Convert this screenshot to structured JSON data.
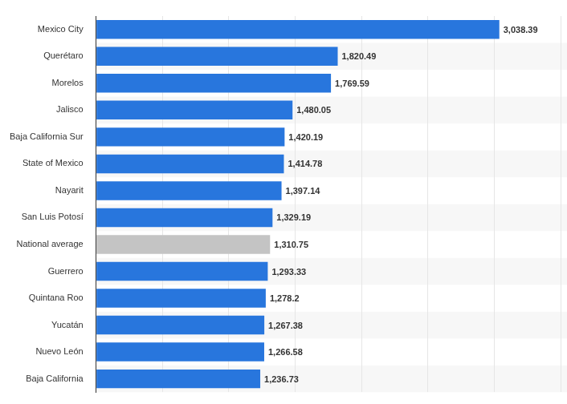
{
  "chart_data": {
    "type": "bar",
    "orientation": "horizontal",
    "categories": [
      "Mexico City",
      "Querétaro",
      "Morelos",
      "Jalisco",
      "Baja California Sur",
      "State of Mexico",
      "Nayarit",
      "San Luis Potosí",
      "National average",
      "Guerrero",
      "Quintana Roo",
      "Yucatán",
      "Nuevo León",
      "Baja California"
    ],
    "values": [
      3038.39,
      1820.49,
      1769.59,
      1480.05,
      1420.19,
      1414.78,
      1397.14,
      1329.19,
      1310.75,
      1293.33,
      1278.2,
      1267.38,
      1266.58,
      1236.73
    ],
    "value_labels": [
      "3,038.39",
      "1,820.49",
      "1,769.59",
      "1,480.05",
      "1,420.19",
      "1,414.78",
      "1,397.14",
      "1,329.19",
      "1,310.75",
      "1,293.33",
      "1,278.2",
      "1,267.38",
      "1,266.58",
      "1,236.73"
    ],
    "colors": [
      "#2876dd",
      "#2876dd",
      "#2876dd",
      "#2876dd",
      "#2876dd",
      "#2876dd",
      "#2876dd",
      "#2876dd",
      "#c4c4c4",
      "#2876dd",
      "#2876dd",
      "#2876dd",
      "#2876dd",
      "#2876dd"
    ],
    "xlim": [
      0,
      3500
    ],
    "xticks": [
      0,
      500,
      1000,
      1500,
      2000,
      2500,
      3000,
      3500
    ],
    "grid": true,
    "data_labels": true,
    "tick_labels": "y"
  }
}
